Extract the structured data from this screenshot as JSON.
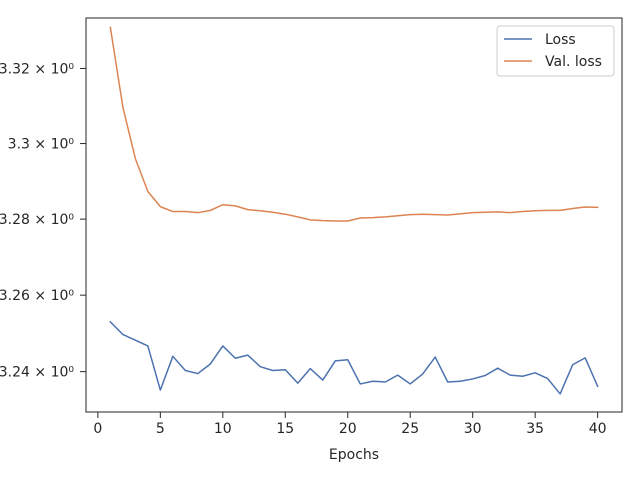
{
  "chart_data": {
    "type": "line",
    "title": "",
    "xlabel": "Epochs",
    "ylabel": "",
    "xlim": [
      -0.95,
      41.95
    ],
    "ylim": [
      3.2295,
      3.3335
    ],
    "yscale": "log",
    "grid": false,
    "legend_position": "top-right",
    "x_ticks": [
      0,
      5,
      10,
      15,
      20,
      25,
      30,
      35,
      40
    ],
    "x_tick_labels": [
      "0",
      "5",
      "10",
      "15",
      "20",
      "25",
      "30",
      "35",
      "40"
    ],
    "y_ticks": [
      3.24,
      3.26,
      3.28,
      3.3,
      3.32
    ],
    "y_tick_labels": [
      "3.24 × 10⁰",
      "3.26 × 10⁰",
      "3.28 × 10⁰",
      "3.3 × 10⁰",
      "3.32 × 10⁰"
    ],
    "x": [
      1,
      2,
      3,
      4,
      5,
      6,
      7,
      8,
      9,
      10,
      11,
      12,
      13,
      14,
      15,
      16,
      17,
      18,
      19,
      20,
      21,
      22,
      23,
      24,
      25,
      26,
      27,
      28,
      29,
      30,
      31,
      32,
      33,
      34,
      35,
      36,
      37,
      38,
      39,
      40
    ],
    "series": [
      {
        "name": "Loss",
        "color": "#4c72b0",
        "values": [
          3.253,
          3.2497,
          3.2482,
          3.2467,
          3.2352,
          3.244,
          3.2403,
          3.2395,
          3.242,
          3.2467,
          3.2435,
          3.2443,
          3.2413,
          3.2403,
          3.2405,
          3.237,
          3.2408,
          3.2378,
          3.2428,
          3.2431,
          3.2368,
          3.2375,
          3.2373,
          3.2391,
          3.2368,
          3.2394,
          3.2438,
          3.2373,
          3.2375,
          3.2381,
          3.239,
          3.2409,
          3.2391,
          3.2388,
          3.2397,
          3.2382,
          3.2342,
          3.2418,
          3.2436,
          3.2362
        ]
      },
      {
        "name": "Val. loss",
        "color": "#dd8452",
        "values": [
          3.331,
          3.3097,
          3.296,
          3.2873,
          3.2833,
          3.282,
          3.282,
          3.2817,
          3.2823,
          3.2838,
          3.2835,
          3.2825,
          3.2822,
          3.2818,
          3.2813,
          3.2806,
          3.2798,
          3.2796,
          3.2795,
          3.2795,
          3.2803,
          3.2804,
          3.2806,
          3.2809,
          3.2812,
          3.2813,
          3.2812,
          3.2811,
          3.2814,
          3.2817,
          3.2818,
          3.2819,
          3.2817,
          3.282,
          3.2822,
          3.2823,
          3.2823,
          3.2828,
          3.2832,
          3.2831
        ]
      }
    ]
  }
}
